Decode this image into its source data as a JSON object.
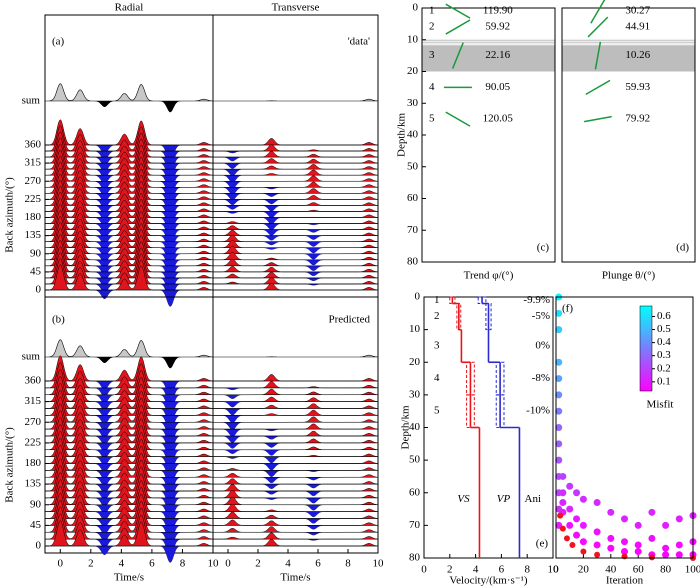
{
  "chart_data": [
    {
      "type": "waveform",
      "panel_label": "(a)",
      "note": "'data'",
      "sum_label": "sum",
      "ylabel": "Back azimuth/(°)",
      "ylim": [
        0,
        360
      ],
      "yticks": [
        0,
        45,
        90,
        135,
        180,
        225,
        270,
        315,
        360
      ],
      "azimuths": [
        0,
        15,
        30,
        45,
        60,
        75,
        90,
        105,
        120,
        135,
        150,
        165,
        180,
        195,
        210,
        225,
        240,
        255,
        270,
        285,
        300,
        315,
        330,
        345,
        360
      ],
      "columns": [
        {
          "title": "Radial",
          "xlim": [
            -1,
            10
          ],
          "pulses": [
            {
              "t": 0,
              "amplitude": 1.15
            },
            {
              "t": 1.3,
              "amplitude": 0.75
            },
            {
              "t": 2.9,
              "amplitude": -0.4
            },
            {
              "t": 4.2,
              "amplitude": 0.5
            },
            {
              "t": 5.3,
              "amplitude": 1.1
            },
            {
              "t": 7.2,
              "amplitude": -0.75
            },
            {
              "t": 9.4,
              "amplitude": 0.12
            }
          ]
        },
        {
          "title": "Transverse",
          "xlim": [
            -1,
            10
          ],
          "pulses": [
            {
              "t": 0.3,
              "amplitudes": [
                0,
                0.09,
                0.18,
                0.25,
                0.3,
                0.34,
                0.35,
                0.34,
                0.3,
                0.25,
                0.18,
                0.09,
                0,
                -0.09,
                -0.18,
                -0.25,
                -0.3,
                -0.34,
                -0.35,
                -0.34,
                -0.3,
                -0.25,
                -0.18,
                -0.09,
                0
              ]
            },
            {
              "t": 2.9,
              "amplitudes": [
                0.3,
                0.29,
                0.26,
                0.21,
                0.15,
                0.08,
                0,
                -0.08,
                -0.15,
                -0.21,
                -0.26,
                -0.29,
                -0.3,
                -0.29,
                -0.26,
                -0.21,
                -0.15,
                -0.08,
                0,
                0.08,
                0.15,
                0.21,
                0.26,
                0.29,
                0.3
              ]
            },
            {
              "t": 5.7,
              "amplitudes": [
                0,
                -0.06,
                -0.13,
                -0.18,
                -0.22,
                -0.24,
                -0.25,
                -0.24,
                -0.22,
                -0.18,
                -0.13,
                -0.06,
                0,
                0.06,
                0.13,
                0.18,
                0.22,
                0.24,
                0.25,
                0.24,
                0.22,
                0.18,
                0.13,
                0.06,
                0
              ]
            },
            {
              "t": 9.4,
              "amplitude": 0.12
            }
          ]
        }
      ]
    },
    {
      "type": "waveform",
      "panel_label": "(b)",
      "note": "Predicted",
      "sum_label": "sum",
      "ylabel": "Back azimuth/(°)",
      "ylim": [
        0,
        360
      ],
      "yticks": [
        0,
        45,
        90,
        135,
        180,
        225,
        270,
        315,
        360
      ],
      "azimuths": [
        0,
        15,
        30,
        45,
        60,
        75,
        90,
        105,
        120,
        135,
        150,
        165,
        180,
        195,
        210,
        225,
        240,
        255,
        270,
        285,
        300,
        315,
        330,
        345,
        360
      ],
      "columns": [
        {
          "xlabel": "Time/s",
          "xlim": [
            -1,
            10
          ],
          "xticks": [
            0,
            2,
            4,
            6,
            8,
            10
          ],
          "pulses": [
            {
              "t": 0,
              "amplitude": 1.15
            },
            {
              "t": 1.3,
              "amplitude": 0.75
            },
            {
              "t": 2.9,
              "amplitude": -0.4
            },
            {
              "t": 4.2,
              "amplitude": 0.5
            },
            {
              "t": 5.3,
              "amplitude": 1.1
            },
            {
              "t": 7.2,
              "amplitude": -0.75
            },
            {
              "t": 9.4,
              "amplitude": 0.12
            }
          ]
        },
        {
          "xlabel": "Time/s",
          "xlim": [
            -1,
            10
          ],
          "xticks": [
            0,
            2,
            4,
            6,
            8,
            10
          ],
          "pulses": [
            {
              "t": 0.3,
              "amplitudes": [
                0,
                0.09,
                0.18,
                0.25,
                0.3,
                0.34,
                0.35,
                0.34,
                0.3,
                0.25,
                0.18,
                0.09,
                0,
                -0.09,
                -0.18,
                -0.25,
                -0.3,
                -0.34,
                -0.35,
                -0.34,
                -0.3,
                -0.25,
                -0.18,
                -0.09,
                0
              ]
            },
            {
              "t": 2.9,
              "amplitudes": [
                0.3,
                0.29,
                0.26,
                0.21,
                0.15,
                0.08,
                0,
                -0.08,
                -0.15,
                -0.21,
                -0.26,
                -0.29,
                -0.3,
                -0.29,
                -0.26,
                -0.21,
                -0.15,
                -0.08,
                0,
                0.08,
                0.15,
                0.21,
                0.26,
                0.29,
                0.3
              ]
            },
            {
              "t": 5.7,
              "amplitudes": [
                0,
                -0.06,
                -0.13,
                -0.18,
                -0.22,
                -0.24,
                -0.25,
                -0.24,
                -0.22,
                -0.18,
                -0.13,
                -0.06,
                0,
                0.06,
                0.13,
                0.18,
                0.22,
                0.24,
                0.25,
                0.24,
                0.22,
                0.18,
                0.13,
                0.06,
                0
              ]
            },
            {
              "t": 9.4,
              "amplitude": 0.12
            }
          ]
        }
      ]
    },
    {
      "type": "stick",
      "panel_label": "(c)",
      "xlabel": "Trend φ/(°)",
      "ylabel": "Depth/km",
      "ylim": [
        0,
        80
      ],
      "yticks": [
        0,
        10,
        20,
        30,
        40,
        50,
        60,
        70,
        80
      ],
      "boundaries": [
        0,
        2,
        10,
        20,
        30,
        40
      ],
      "band": [
        10,
        20
      ],
      "layers": [
        "1",
        "2",
        "3",
        "4",
        "5"
      ],
      "values": [
        119.9,
        59.92,
        22.16,
        90.05,
        120.05
      ],
      "value_labels": [
        "119.90",
        "59.92",
        "22.16",
        "90.05",
        "120.05"
      ]
    },
    {
      "type": "stick",
      "panel_label": "(d)",
      "xlabel": "Plunge θ/(°)",
      "ylim": [
        0,
        80
      ],
      "boundaries": [
        0,
        2,
        10,
        20,
        30,
        40
      ],
      "band": [
        10,
        20
      ],
      "values": [
        30.27,
        44.91,
        10.26,
        59.93,
        79.92
      ],
      "value_labels": [
        "30.27",
        "44.91",
        "10.26",
        "59.93",
        "79.92"
      ]
    },
    {
      "type": "velocity_model",
      "panel_label": "(e)",
      "xlabel": "Velocity/(km·s⁻¹)",
      "ylabel": "Depth/km",
      "xlim": [
        0,
        10
      ],
      "xticks": [
        0,
        2,
        4,
        6,
        8,
        10
      ],
      "ylim": [
        0,
        80
      ],
      "yticks": [
        0,
        10,
        20,
        30,
        40,
        50,
        60,
        70,
        80
      ],
      "boundaries": [
        0,
        2,
        10,
        20,
        30,
        40
      ],
      "layers": [
        "1",
        "2",
        "3",
        "4",
        "5"
      ],
      "anisotropy": {
        "label": "Ani",
        "values": [
          -9.9,
          -5,
          0,
          -8,
          -10
        ],
        "value_labels": [
          "-9.9%",
          "-5%",
          "0%",
          "-8%",
          "-10%"
        ]
      },
      "series": [
        {
          "name": "VS",
          "color": "#e8141b",
          "values": [
            2.2,
            2.7,
            2.9,
            3.6,
            3.6,
            4.3
          ],
          "min": [
            2.0,
            2.55,
            null,
            3.3,
            3.3,
            null
          ],
          "max": [
            2.4,
            2.85,
            null,
            3.9,
            3.9,
            null
          ]
        },
        {
          "name": "VP",
          "color": "#2a2ad0",
          "values": [
            4.5,
            5.0,
            5.0,
            5.9,
            5.9,
            7.4
          ],
          "min": [
            4.2,
            4.8,
            null,
            5.6,
            5.6,
            null
          ],
          "max": [
            4.8,
            5.2,
            null,
            6.2,
            6.2,
            null
          ]
        }
      ]
    },
    {
      "type": "scatter",
      "panel_label": "(f)",
      "xlabel": "Iteration",
      "xlim": [
        0,
        100
      ],
      "xticks": [
        0,
        20,
        40,
        60,
        80,
        100
      ],
      "ylim": [
        0,
        80
      ],
      "x": [
        2,
        2,
        2,
        2,
        2,
        2,
        2,
        2,
        2,
        2,
        2,
        2,
        2,
        2,
        5,
        5,
        5,
        5,
        10,
        10,
        10,
        15,
        15,
        15,
        20,
        20,
        20,
        30,
        30,
        30,
        40,
        40,
        40,
        50,
        50,
        50,
        60,
        60,
        60,
        70,
        70,
        70,
        80,
        80,
        80,
        90,
        90,
        90,
        100,
        100,
        100
      ],
      "y": [
        0,
        5,
        10,
        20,
        25,
        30,
        35,
        40,
        45,
        50,
        55,
        60,
        65,
        70,
        55,
        60,
        63,
        66,
        58,
        65,
        70,
        60,
        68,
        73,
        62,
        70,
        75,
        63,
        72,
        76,
        66,
        74,
        77,
        68,
        75,
        78,
        70,
        76,
        78,
        66,
        74,
        79,
        70,
        77,
        79,
        68,
        76,
        79,
        67,
        75,
        79
      ],
      "misfit": [
        0.65,
        0.6,
        0.55,
        0.5,
        0.45,
        0.4,
        0.35,
        0.3,
        0.28,
        0.25,
        0.22,
        0.2,
        0.15,
        0.1,
        0.2,
        0.15,
        0.13,
        0.1,
        0.18,
        0.12,
        0.08,
        0.17,
        0.1,
        0.06,
        0.15,
        0.09,
        0.05,
        0.14,
        0.08,
        0.05,
        0.13,
        0.07,
        0.04,
        0.12,
        0.07,
        0.04,
        0.11,
        0.06,
        0.04,
        0.13,
        0.07,
        0.04,
        0.11,
        0.06,
        0.04,
        0.12,
        0.06,
        0.04,
        0.12,
        0.06,
        0.04
      ],
      "best": {
        "color": "#f0141e",
        "x": [
          3,
          5,
          8,
          12,
          20,
          30,
          50,
          70,
          100
        ],
        "y": [
          67,
          71,
          74,
          76,
          78,
          79,
          79.5,
          79.8,
          80
        ]
      },
      "colorbar": {
        "label": "Misfit",
        "clim": [
          0.03,
          0.68
        ],
        "ticks": [
          0.1,
          0.2,
          0.3,
          0.4,
          0.5,
          0.6
        ],
        "colormap": [
          "#ff00ff",
          "#7c7cff",
          "#00ffff"
        ]
      }
    }
  ]
}
